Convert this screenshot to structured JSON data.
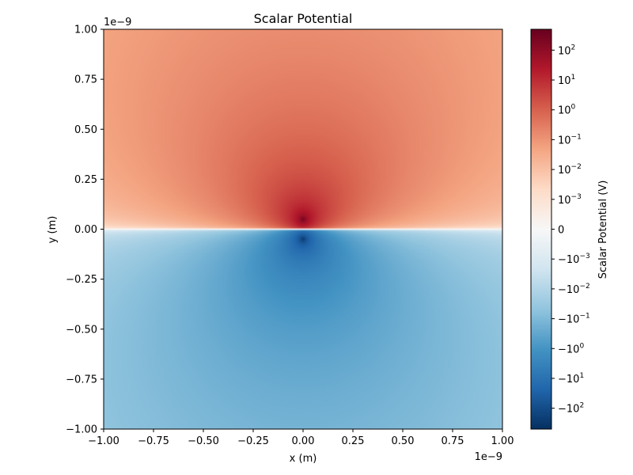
{
  "chart_data": {
    "type": "heatmap",
    "title": "Scalar Potential",
    "xlabel": "x (m)",
    "ylabel": "y (m)",
    "x_offset_label": "1e−9",
    "y_offset_label": "1e−9",
    "xlim": [
      -1.0,
      1.0
    ],
    "ylim": [
      -1.0,
      1.0
    ],
    "x_ticks": [
      -1.0,
      -0.75,
      -0.5,
      -0.25,
      0.0,
      0.25,
      0.5,
      0.75,
      1.0
    ],
    "x_tick_labels": [
      "−1.00",
      "−0.75",
      "−0.50",
      "−0.25",
      "0.00",
      "0.25",
      "0.50",
      "0.75",
      "1.00"
    ],
    "y_ticks": [
      -1.0,
      -0.75,
      -0.5,
      -0.25,
      0.0,
      0.25,
      0.5,
      0.75,
      1.0
    ],
    "y_tick_labels": [
      "−1.00",
      "−0.75",
      "−0.50",
      "−0.25",
      "0.00",
      "0.25",
      "0.50",
      "0.75",
      "1.00"
    ],
    "field": {
      "description_units": "1e-9 m",
      "charges": [
        {
          "x": 0.0,
          "y": 0.05,
          "sign": 1
        },
        {
          "x": 0.0,
          "y": -0.05,
          "sign": -1
        }
      ]
    },
    "colorbar": {
      "label": "Scalar Potential (V)",
      "colormap": "RdBu_r",
      "scale": "symlog",
      "linthresh": 0.001,
      "vmin": -500,
      "vmax": 500,
      "ticks": [
        {
          "value": 100,
          "base": "10",
          "exp": "2",
          "neg": false
        },
        {
          "value": 10,
          "base": "10",
          "exp": "1",
          "neg": false
        },
        {
          "value": 1,
          "base": "10",
          "exp": "0",
          "neg": false
        },
        {
          "value": 0.1,
          "base": "10",
          "exp": "−1",
          "neg": false
        },
        {
          "value": 0.01,
          "base": "10",
          "exp": "−2",
          "neg": false
        },
        {
          "value": 0.001,
          "base": "10",
          "exp": "−3",
          "neg": false
        },
        {
          "value": 0,
          "base": "0",
          "exp": "",
          "neg": false
        },
        {
          "value": -0.001,
          "base": "−10",
          "exp": "−3",
          "neg": true
        },
        {
          "value": -0.01,
          "base": "−10",
          "exp": "−2",
          "neg": true
        },
        {
          "value": -0.1,
          "base": "−10",
          "exp": "−1",
          "neg": true
        },
        {
          "value": -1,
          "base": "−10",
          "exp": "0",
          "neg": true
        },
        {
          "value": -10,
          "base": "−10",
          "exp": "1",
          "neg": true
        },
        {
          "value": -100,
          "base": "−10",
          "exp": "2",
          "neg": true
        }
      ]
    },
    "colors": {
      "red_dark": "#67001f",
      "blue_dark": "#053061",
      "mid": "#f7f7f7"
    }
  }
}
